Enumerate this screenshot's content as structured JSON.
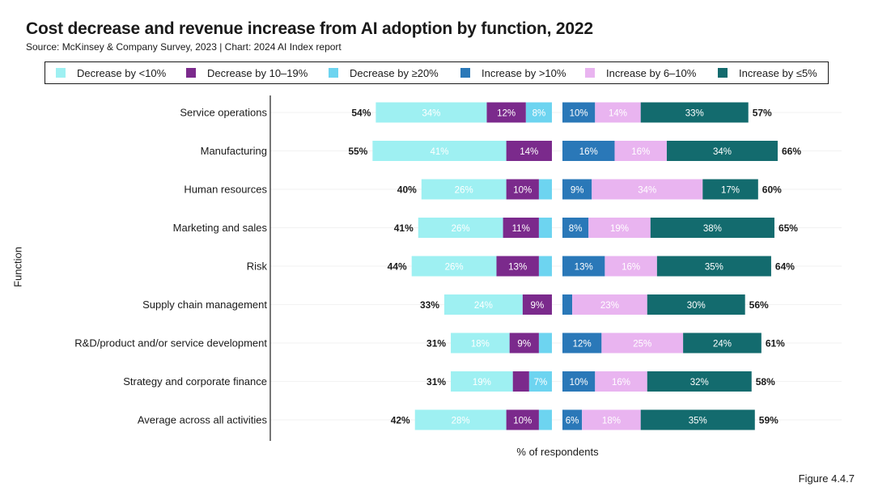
{
  "title": "Cost decrease and revenue increase from AI adoption by function, 2022",
  "subtitle": "Source: McKinsey & Company Survey, 2023 | Chart: 2024 AI Index report",
  "figure_label": "Figure 4.4.7",
  "legend": [
    {
      "label": "Decrease by <10%",
      "color": "#9ef0f2"
    },
    {
      "label": "Decrease by 10–19%",
      "color": "#7b2a8c"
    },
    {
      "label": "Decrease by ≥20%",
      "color": "#6dd4f0"
    },
    {
      "label": "Increase by >10%",
      "color": "#2a78b8"
    },
    {
      "label": "Increase by 6–10%",
      "color": "#e9b4f0"
    },
    {
      "label": "Increase by ≤5%",
      "color": "#136b6e"
    }
  ],
  "chart_data": {
    "type": "bar",
    "orientation": "horizontal",
    "stacked": "diverging",
    "xlabel": "% of respondents",
    "ylabel": "Function",
    "categories": [
      "Service operations",
      "Manufacturing",
      "Human resources",
      "Marketing and sales",
      "Risk",
      "Supply chain management",
      "R&D/product and/or service development",
      "Strategy and corporate finance",
      "Average across all activities"
    ],
    "decrease_series": [
      {
        "name": "Decrease by ≥20%",
        "values": [
          8,
          0,
          4,
          4,
          4,
          0,
          4,
          7,
          4
        ]
      },
      {
        "name": "Decrease by 10–19%",
        "values": [
          12,
          14,
          10,
          11,
          13,
          9,
          9,
          5,
          10
        ]
      },
      {
        "name": "Decrease by <10%",
        "values": [
          34,
          41,
          26,
          26,
          26,
          24,
          18,
          19,
          28
        ]
      }
    ],
    "decrease_totals": [
      "54%",
      "55%",
      "40%",
      "41%",
      "44%",
      "33%",
      "31%",
      "31%",
      "42%"
    ],
    "increase_series": [
      {
        "name": "Increase by >10%",
        "values": [
          10,
          16,
          9,
          8,
          13,
          3,
          12,
          10,
          6
        ]
      },
      {
        "name": "Increase by 6–10%",
        "values": [
          14,
          16,
          34,
          19,
          16,
          23,
          25,
          16,
          18
        ]
      },
      {
        "name": "Increase by ≤5%",
        "values": [
          33,
          34,
          17,
          38,
          35,
          30,
          24,
          32,
          35
        ]
      }
    ],
    "increase_totals": [
      "57%",
      "66%",
      "60%",
      "65%",
      "64%",
      "56%",
      "61%",
      "58%",
      "59%"
    ],
    "segment_labels": {
      "Decrease by ≥20%": [
        "8%",
        "",
        "",
        "",
        "",
        "",
        "",
        "7%",
        ""
      ],
      "Decrease by 10–19%": [
        "12%",
        "14%",
        "10%",
        "11%",
        "13%",
        "9%",
        "9%",
        "",
        "10%"
      ],
      "Decrease by <10%": [
        "34%",
        "41%",
        "26%",
        "26%",
        "26%",
        "24%",
        "18%",
        "19%",
        "28%"
      ],
      "Increase by >10%": [
        "10%",
        "16%",
        "9%",
        "8%",
        "13%",
        "",
        "12%",
        "10%",
        "6%"
      ],
      "Increase by 6–10%": [
        "14%",
        "16%",
        "34%",
        "19%",
        "16%",
        "23%",
        "25%",
        "16%",
        "18%"
      ],
      "Increase by ≤5%": [
        "33%",
        "34%",
        "17%",
        "38%",
        "35%",
        "30%",
        "24%",
        "32%",
        "35%"
      ]
    },
    "legend_position": "top",
    "grid": false
  }
}
